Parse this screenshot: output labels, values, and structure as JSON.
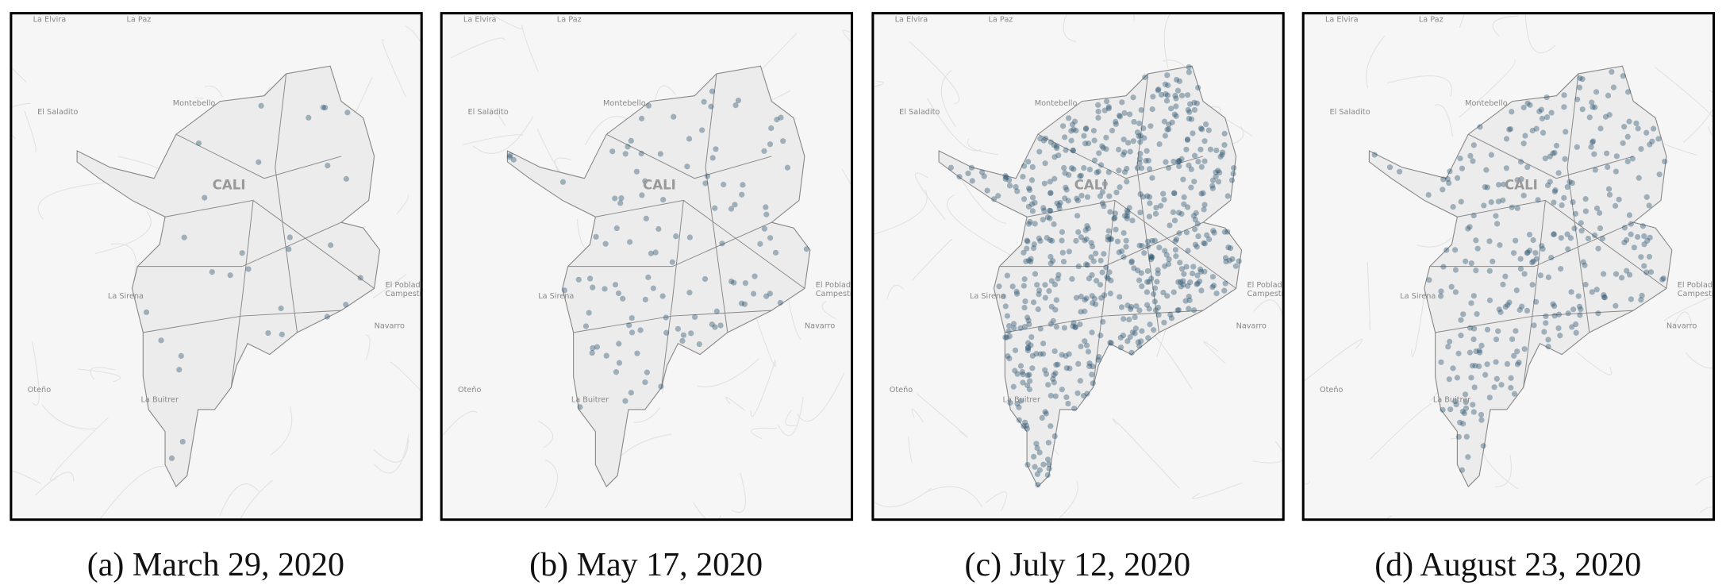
{
  "map_labels": [
    "La Elvira",
    "La Paz",
    "El Saladito",
    "Montebello",
    "CALI",
    "La Sirena",
    "El Poblado",
    "Campestre",
    "Navarro",
    "Oteño",
    "La Buitrer"
  ],
  "panels": [
    {
      "caption": "(a) March 29, 2020"
    },
    {
      "caption": "(b) May 17, 2020"
    },
    {
      "caption": "(c) July 12, 2020"
    },
    {
      "caption": "(d) August 23, 2020"
    }
  ]
}
